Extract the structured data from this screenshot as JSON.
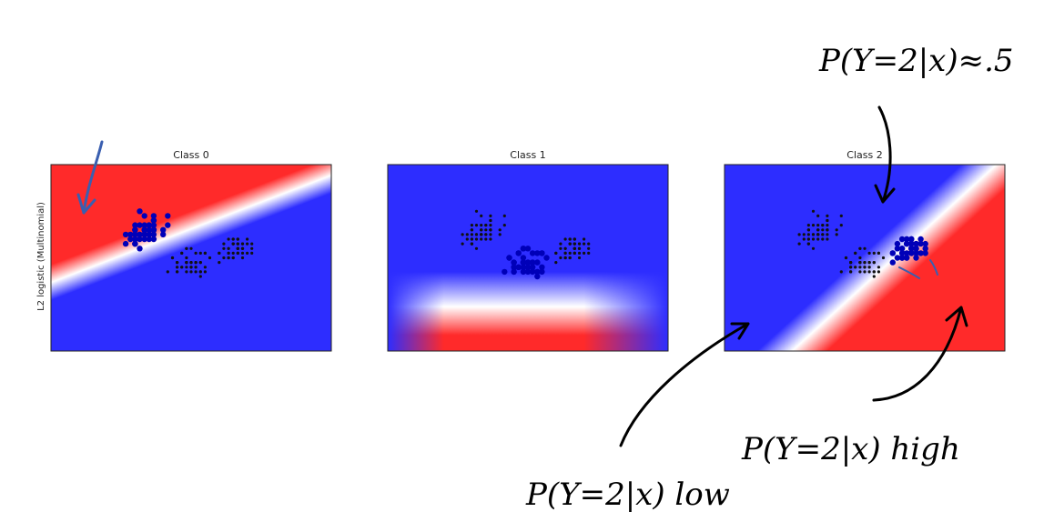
{
  "chart_data": {
    "type": "scatter",
    "ylabel": "L2 logistic (Multinomial)",
    "colors": {
      "high": "#ff2a2a",
      "mid": "#ffffff",
      "low": "#2d2dff",
      "highlight": "#0000b8",
      "other": "#111111",
      "hand_ink": "#000000",
      "blue_ink": "#3a5fb0"
    },
    "panels": [
      {
        "title": "Class 0",
        "highlight_class": 0
      },
      {
        "title": "Class 1",
        "highlight_class": 1
      },
      {
        "title": "Class 2",
        "highlight_class": 2
      }
    ],
    "annotations": [
      {
        "text": "P(Y=2|x)≈.5",
        "panel": 2
      },
      {
        "text": "P(Y=2|x) high",
        "panel": 2
      },
      {
        "text": "P(Y=2|x) low",
        "panel": 2
      }
    ]
  }
}
